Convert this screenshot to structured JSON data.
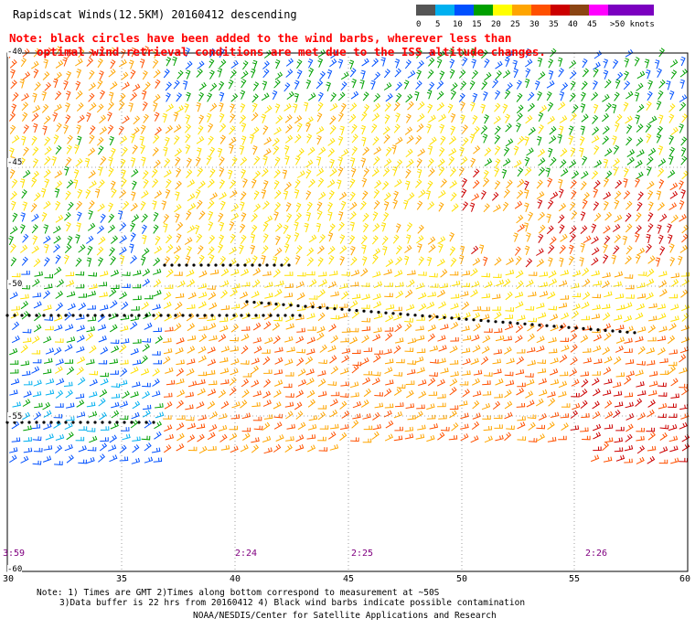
{
  "header": {
    "title": "Rapidscat Winds(12.5KM) 20160412 descending",
    "note_line1": "Note: black circles have been added to the wind barbs, wherever less than",
    "note_line2": "optimal wind retrieval conditions are met due to the ISS altitude changes."
  },
  "speed_scale": {
    "labels": [
      "0",
      "5",
      "10",
      "15",
      "20",
      "25",
      "30",
      "35",
      "40",
      "45",
      ">50 knots"
    ],
    "colors": [
      "#555555",
      "#00b0f0",
      "#0050ff",
      "#00a000",
      "#ffff00",
      "#ffa500",
      "#ff5000",
      "#cc0000",
      "#8b4513",
      "#ff00ff",
      "#7b00c0"
    ]
  },
  "map": {
    "lat_labels": [
      "-40",
      "-45",
      "-50",
      "-55",
      "-60"
    ],
    "lon_labels": [
      "30",
      "35",
      "40",
      "45",
      "50",
      "55",
      "60"
    ],
    "pass_times": [
      "3:59",
      "2:24",
      "2:25",
      "2:26"
    ],
    "lon_range": [
      30,
      60
    ],
    "lat_range": [
      -40,
      -60
    ],
    "grid": true
  },
  "footer": {
    "line1": "Note: 1) Times are GMT 2)Times along bottom correspond to measurement at ~50S",
    "line2": "3)Data buffer is 22 hrs from 20160412 4) Black wind barbs indicate possible contamination",
    "credit": "NOAA/NESDIS/Center for Satellite Applications and Research"
  }
}
